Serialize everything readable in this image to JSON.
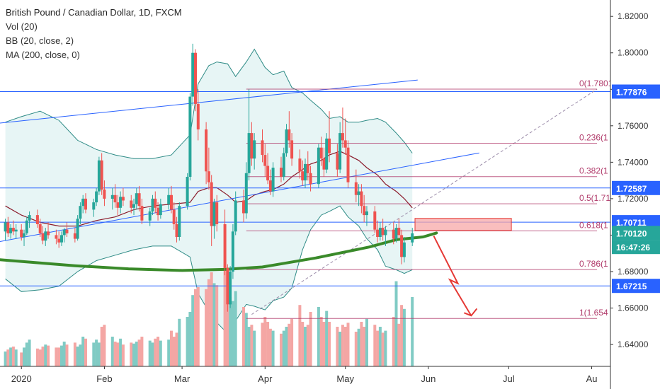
{
  "legend": {
    "title": "British Pound / Canadian Dollar, 1D, FXCM",
    "indicators": [
      "Vol (20)",
      "BB (20, close, 2)",
      "MA (200, close, 0)"
    ]
  },
  "colors": {
    "up": "#26a69a",
    "down": "#ef5350",
    "vol_up": "#80cbc4",
    "vol_down": "#f4a6a4",
    "bb_band": "#2e8b86",
    "bb_fill": "#dff2f2",
    "bb_mid": "#8b1a2a",
    "ma200": "#3a8a2a",
    "fib": "#b03a6a",
    "hline": "#2962ff",
    "arrow": "#e53935",
    "zone": "#f7a8a8"
  },
  "chart_data": {
    "type": "candlestick",
    "y_axis": {
      "range": [
        1.628,
        1.829
      ],
      "ticks": [
        1.82,
        1.8,
        1.78,
        1.76,
        1.74,
        1.72,
        1.7,
        1.68,
        1.66,
        1.64
      ],
      "tick_labels": [
        "1.82000",
        "1.80000",
        "1.78000",
        "1.76000",
        "1.74000",
        "1.72000",
        "1.70000",
        "1.68000",
        "1.66000",
        "1.64000"
      ]
    },
    "x_axis": {
      "range_days": [
        -8,
        220
      ],
      "labels": [
        {
          "day": 0,
          "text": "2020"
        },
        {
          "day": 31,
          "text": "Feb"
        },
        {
          "day": 60,
          "text": "Mar"
        },
        {
          "day": 91,
          "text": "Apr"
        },
        {
          "day": 121,
          "text": "May"
        },
        {
          "day": 152,
          "text": "Jun"
        },
        {
          "day": 182,
          "text": "Jul"
        },
        {
          "day": 213,
          "text": "Au"
        }
      ]
    },
    "price_badges": [
      {
        "value": 1.77876,
        "text": "1.77876",
        "color": "#2962ff"
      },
      {
        "value": 1.72587,
        "text": "1.72587",
        "color": "#2962ff"
      },
      {
        "value": 1.70711,
        "text": "1.70711",
        "color": "#2962ff"
      },
      {
        "value": 1.7012,
        "text": "1.70120",
        "color": "#26a69a"
      },
      {
        "value": 1.6935,
        "text": "16:47:26",
        "color": "#26a69a"
      },
      {
        "value": 1.67215,
        "text": "1.67215",
        "color": "#2962ff"
      }
    ],
    "horizontal_lines": [
      1.77876,
      1.72587,
      1.70711,
      1.67215
    ],
    "fib_levels": [
      {
        "value": 1.7801,
        "text": "0(1.7801"
      },
      {
        "value": 1.7504,
        "text": "0.236(1"
      },
      {
        "value": 1.7321,
        "text": "0.382(1"
      },
      {
        "value": 1.7172,
        "text": "0.5(1.71"
      },
      {
        "value": 1.7023,
        "text": "0.618(1"
      },
      {
        "value": 1.6811,
        "text": "0.786(1"
      },
      {
        "value": 1.6543,
        "text": "1(1.654"
      }
    ],
    "fib_x_days": [
      84,
      215
    ],
    "channel_lines": [
      {
        "x": [
          -8,
          148
        ],
        "y": [
          1.7615,
          1.7851
        ]
      },
      {
        "x": [
          -8,
          171
        ],
        "y": [
          1.6965,
          1.7451
        ]
      }
    ],
    "dashed_trend": {
      "x": [
        86,
        215
      ],
      "y": [
        1.6565,
        1.7801
      ]
    },
    "zone": {
      "x": [
        147,
        183
      ],
      "y": [
        1.7025,
        1.7092
      ]
    },
    "forecast_arrow": {
      "x": [
        154,
        163,
        160,
        168
      ],
      "y": [
        1.6995,
        1.6735,
        1.6755,
        1.6558
      ]
    },
    "ma200": {
      "x": [
        -8,
        20,
        40,
        60,
        76,
        90,
        110,
        130,
        140,
        150,
        155
      ],
      "y": [
        1.6865,
        1.6832,
        1.6815,
        1.6806,
        1.6812,
        1.6825,
        1.6875,
        1.6935,
        1.6975,
        1.699,
        1.7012
      ]
    },
    "candles": [
      {
        "d": -6,
        "o": 1.702,
        "h": 1.709,
        "l": 1.697,
        "c": 1.707
      },
      {
        "d": -5,
        "o": 1.707,
        "h": 1.71,
        "l": 1.699,
        "c": 1.701
      },
      {
        "d": -4,
        "o": 1.701,
        "h": 1.706,
        "l": 1.698,
        "c": 1.704
      },
      {
        "d": -3,
        "o": 1.704,
        "h": 1.708,
        "l": 1.7,
        "c": 1.702
      },
      {
        "d": -2,
        "o": 1.702,
        "h": 1.706,
        "l": 1.698,
        "c": 1.703
      },
      {
        "d": 0,
        "o": 1.703,
        "h": 1.706,
        "l": 1.697,
        "c": 1.699
      },
      {
        "d": 1,
        "o": 1.699,
        "h": 1.703,
        "l": 1.694,
        "c": 1.701
      },
      {
        "d": 2,
        "o": 1.701,
        "h": 1.71,
        "l": 1.7,
        "c": 1.708
      },
      {
        "d": 3,
        "o": 1.708,
        "h": 1.713,
        "l": 1.704,
        "c": 1.711
      },
      {
        "d": 6,
        "o": 1.711,
        "h": 1.714,
        "l": 1.704,
        "c": 1.706
      },
      {
        "d": 7,
        "o": 1.706,
        "h": 1.709,
        "l": 1.699,
        "c": 1.701
      },
      {
        "d": 8,
        "o": 1.701,
        "h": 1.705,
        "l": 1.695,
        "c": 1.697
      },
      {
        "d": 9,
        "o": 1.697,
        "h": 1.704,
        "l": 1.694,
        "c": 1.702
      },
      {
        "d": 10,
        "o": 1.702,
        "h": 1.707,
        "l": 1.698,
        "c": 1.7
      },
      {
        "d": 13,
        "o": 1.7,
        "h": 1.703,
        "l": 1.695,
        "c": 1.698
      },
      {
        "d": 14,
        "o": 1.698,
        "h": 1.702,
        "l": 1.693,
        "c": 1.696
      },
      {
        "d": 15,
        "o": 1.696,
        "h": 1.702,
        "l": 1.694,
        "c": 1.7
      },
      {
        "d": 16,
        "o": 1.7,
        "h": 1.704,
        "l": 1.696,
        "c": 1.703
      },
      {
        "d": 17,
        "o": 1.703,
        "h": 1.707,
        "l": 1.699,
        "c": 1.701
      },
      {
        "d": 20,
        "o": 1.701,
        "h": 1.704,
        "l": 1.696,
        "c": 1.698
      },
      {
        "d": 21,
        "o": 1.698,
        "h": 1.711,
        "l": 1.697,
        "c": 1.709
      },
      {
        "d": 22,
        "o": 1.709,
        "h": 1.718,
        "l": 1.706,
        "c": 1.716
      },
      {
        "d": 23,
        "o": 1.716,
        "h": 1.722,
        "l": 1.712,
        "c": 1.72
      },
      {
        "d": 24,
        "o": 1.72,
        "h": 1.723,
        "l": 1.712,
        "c": 1.714
      },
      {
        "d": 27,
        "o": 1.714,
        "h": 1.72,
        "l": 1.71,
        "c": 1.718
      },
      {
        "d": 28,
        "o": 1.718,
        "h": 1.726,
        "l": 1.716,
        "c": 1.724
      },
      {
        "d": 29,
        "o": 1.724,
        "h": 1.743,
        "l": 1.722,
        "c": 1.741
      },
      {
        "d": 30,
        "o": 1.741,
        "h": 1.745,
        "l": 1.722,
        "c": 1.725
      },
      {
        "d": 31,
        "o": 1.725,
        "h": 1.73,
        "l": 1.716,
        "c": 1.72
      },
      {
        "d": 34,
        "o": 1.72,
        "h": 1.726,
        "l": 1.714,
        "c": 1.722
      },
      {
        "d": 35,
        "o": 1.722,
        "h": 1.728,
        "l": 1.715,
        "c": 1.718
      },
      {
        "d": 36,
        "o": 1.718,
        "h": 1.722,
        "l": 1.711,
        "c": 1.715
      },
      {
        "d": 37,
        "o": 1.715,
        "h": 1.724,
        "l": 1.712,
        "c": 1.721
      },
      {
        "d": 38,
        "o": 1.721,
        "h": 1.726,
        "l": 1.716,
        "c": 1.719
      },
      {
        "d": 41,
        "o": 1.719,
        "h": 1.722,
        "l": 1.712,
        "c": 1.715
      },
      {
        "d": 42,
        "o": 1.715,
        "h": 1.72,
        "l": 1.711,
        "c": 1.717
      },
      {
        "d": 43,
        "o": 1.717,
        "h": 1.726,
        "l": 1.714,
        "c": 1.723
      },
      {
        "d": 44,
        "o": 1.723,
        "h": 1.727,
        "l": 1.713,
        "c": 1.716
      },
      {
        "d": 45,
        "o": 1.716,
        "h": 1.72,
        "l": 1.706,
        "c": 1.708
      },
      {
        "d": 48,
        "o": 1.708,
        "h": 1.715,
        "l": 1.705,
        "c": 1.713
      },
      {
        "d": 49,
        "o": 1.713,
        "h": 1.722,
        "l": 1.711,
        "c": 1.72
      },
      {
        "d": 50,
        "o": 1.72,
        "h": 1.724,
        "l": 1.712,
        "c": 1.715
      },
      {
        "d": 51,
        "o": 1.715,
        "h": 1.718,
        "l": 1.708,
        "c": 1.711
      },
      {
        "d": 52,
        "o": 1.711,
        "h": 1.72,
        "l": 1.709,
        "c": 1.717
      },
      {
        "d": 55,
        "o": 1.717,
        "h": 1.726,
        "l": 1.714,
        "c": 1.722
      },
      {
        "d": 56,
        "o": 1.722,
        "h": 1.727,
        "l": 1.712,
        "c": 1.714
      },
      {
        "d": 57,
        "o": 1.714,
        "h": 1.718,
        "l": 1.703,
        "c": 1.706
      },
      {
        "d": 58,
        "o": 1.706,
        "h": 1.71,
        "l": 1.696,
        "c": 1.699
      },
      {
        "d": 59,
        "o": 1.699,
        "h": 1.718,
        "l": 1.697,
        "c": 1.716
      },
      {
        "d": 62,
        "o": 1.716,
        "h": 1.734,
        "l": 1.714,
        "c": 1.732
      },
      {
        "d": 63,
        "o": 1.732,
        "h": 1.778,
        "l": 1.73,
        "c": 1.776
      },
      {
        "d": 64,
        "o": 1.776,
        "h": 1.805,
        "l": 1.771,
        "c": 1.8
      },
      {
        "d": 65,
        "o": 1.8,
        "h": 1.802,
        "l": 1.768,
        "c": 1.772
      },
      {
        "d": 66,
        "o": 1.772,
        "h": 1.78,
        "l": 1.752,
        "c": 1.758
      },
      {
        "d": 69,
        "o": 1.758,
        "h": 1.762,
        "l": 1.728,
        "c": 1.735
      },
      {
        "d": 70,
        "o": 1.735,
        "h": 1.748,
        "l": 1.725,
        "c": 1.729
      },
      {
        "d": 71,
        "o": 1.729,
        "h": 1.733,
        "l": 1.694,
        "c": 1.705
      },
      {
        "d": 72,
        "o": 1.705,
        "h": 1.72,
        "l": 1.698,
        "c": 1.718
      },
      {
        "d": 73,
        "o": 1.718,
        "h": 1.722,
        "l": 1.702,
        "c": 1.706
      },
      {
        "d": 76,
        "o": 1.706,
        "h": 1.714,
        "l": 1.678,
        "c": 1.682
      },
      {
        "d": 77,
        "o": 1.682,
        "h": 1.684,
        "l": 1.658,
        "c": 1.662
      },
      {
        "d": 78,
        "o": 1.662,
        "h": 1.683,
        "l": 1.66,
        "c": 1.68
      },
      {
        "d": 79,
        "o": 1.68,
        "h": 1.706,
        "l": 1.676,
        "c": 1.702
      },
      {
        "d": 80,
        "o": 1.702,
        "h": 1.724,
        "l": 1.7,
        "c": 1.719
      },
      {
        "d": 83,
        "o": 1.719,
        "h": 1.725,
        "l": 1.707,
        "c": 1.712
      },
      {
        "d": 84,
        "o": 1.712,
        "h": 1.74,
        "l": 1.709,
        "c": 1.734
      },
      {
        "d": 85,
        "o": 1.734,
        "h": 1.78,
        "l": 1.73,
        "c": 1.756
      },
      {
        "d": 86,
        "o": 1.756,
        "h": 1.762,
        "l": 1.738,
        "c": 1.742
      },
      {
        "d": 87,
        "o": 1.742,
        "h": 1.756,
        "l": 1.736,
        "c": 1.752
      },
      {
        "d": 90,
        "o": 1.752,
        "h": 1.758,
        "l": 1.74,
        "c": 1.744
      },
      {
        "d": 91,
        "o": 1.744,
        "h": 1.75,
        "l": 1.732,
        "c": 1.738
      },
      {
        "d": 92,
        "o": 1.738,
        "h": 1.745,
        "l": 1.728,
        "c": 1.73
      },
      {
        "d": 93,
        "o": 1.73,
        "h": 1.736,
        "l": 1.722,
        "c": 1.724
      },
      {
        "d": 94,
        "o": 1.724,
        "h": 1.74,
        "l": 1.721,
        "c": 1.737
      },
      {
        "d": 97,
        "o": 1.737,
        "h": 1.743,
        "l": 1.729,
        "c": 1.732
      },
      {
        "d": 98,
        "o": 1.732,
        "h": 1.748,
        "l": 1.73,
        "c": 1.745
      },
      {
        "d": 99,
        "o": 1.745,
        "h": 1.761,
        "l": 1.743,
        "c": 1.758
      },
      {
        "d": 100,
        "o": 1.758,
        "h": 1.768,
        "l": 1.748,
        "c": 1.752
      },
      {
        "d": 101,
        "o": 1.752,
        "h": 1.756,
        "l": 1.738,
        "c": 1.742
      },
      {
        "d": 104,
        "o": 1.742,
        "h": 1.747,
        "l": 1.731,
        "c": 1.735
      },
      {
        "d": 105,
        "o": 1.735,
        "h": 1.741,
        "l": 1.727,
        "c": 1.73
      },
      {
        "d": 106,
        "o": 1.73,
        "h": 1.742,
        "l": 1.726,
        "c": 1.739
      },
      {
        "d": 107,
        "o": 1.739,
        "h": 1.746,
        "l": 1.73,
        "c": 1.734
      },
      {
        "d": 108,
        "o": 1.734,
        "h": 1.738,
        "l": 1.724,
        "c": 1.728
      },
      {
        "d": 111,
        "o": 1.728,
        "h": 1.75,
        "l": 1.726,
        "c": 1.748
      },
      {
        "d": 112,
        "o": 1.748,
        "h": 1.754,
        "l": 1.738,
        "c": 1.742
      },
      {
        "d": 113,
        "o": 1.742,
        "h": 1.748,
        "l": 1.732,
        "c": 1.736
      },
      {
        "d": 114,
        "o": 1.736,
        "h": 1.756,
        "l": 1.734,
        "c": 1.753
      },
      {
        "d": 115,
        "o": 1.753,
        "h": 1.768,
        "l": 1.74,
        "c": 1.745
      },
      {
        "d": 118,
        "o": 1.745,
        "h": 1.75,
        "l": 1.732,
        "c": 1.736
      },
      {
        "d": 119,
        "o": 1.736,
        "h": 1.762,
        "l": 1.734,
        "c": 1.756
      },
      {
        "d": 120,
        "o": 1.756,
        "h": 1.77,
        "l": 1.748,
        "c": 1.752
      },
      {
        "d": 121,
        "o": 1.752,
        "h": 1.764,
        "l": 1.744,
        "c": 1.748
      },
      {
        "d": 122,
        "o": 1.748,
        "h": 1.752,
        "l": 1.726,
        "c": 1.729
      },
      {
        "d": 125,
        "o": 1.729,
        "h": 1.736,
        "l": 1.718,
        "c": 1.722
      },
      {
        "d": 126,
        "o": 1.722,
        "h": 1.728,
        "l": 1.716,
        "c": 1.724
      },
      {
        "d": 127,
        "o": 1.724,
        "h": 1.728,
        "l": 1.712,
        "c": 1.716
      },
      {
        "d": 128,
        "o": 1.716,
        "h": 1.722,
        "l": 1.707,
        "c": 1.711
      },
      {
        "d": 129,
        "o": 1.711,
        "h": 1.716,
        "l": 1.705,
        "c": 1.713
      },
      {
        "d": 132,
        "o": 1.713,
        "h": 1.716,
        "l": 1.701,
        "c": 1.703
      },
      {
        "d": 133,
        "o": 1.703,
        "h": 1.708,
        "l": 1.696,
        "c": 1.699
      },
      {
        "d": 134,
        "o": 1.699,
        "h": 1.707,
        "l": 1.697,
        "c": 1.704
      },
      {
        "d": 135,
        "o": 1.704,
        "h": 1.709,
        "l": 1.697,
        "c": 1.7
      },
      {
        "d": 136,
        "o": 1.7,
        "h": 1.705,
        "l": 1.694,
        "c": 1.703
      },
      {
        "d": 139,
        "o": 1.703,
        "h": 1.707,
        "l": 1.695,
        "c": 1.698
      },
      {
        "d": 140,
        "o": 1.698,
        "h": 1.706,
        "l": 1.696,
        "c": 1.704
      },
      {
        "d": 141,
        "o": 1.704,
        "h": 1.709,
        "l": 1.698,
        "c": 1.7
      },
      {
        "d": 142,
        "o": 1.7,
        "h": 1.703,
        "l": 1.684,
        "c": 1.688
      },
      {
        "d": 143,
        "o": 1.688,
        "h": 1.699,
        "l": 1.685,
        "c": 1.696
      },
      {
        "d": 146,
        "o": 1.696,
        "h": 1.704,
        "l": 1.694,
        "c": 1.701
      }
    ],
    "bb_x": [
      -6,
      0,
      7,
      14,
      21,
      28,
      35,
      42,
      49,
      56,
      63,
      66,
      70,
      73,
      77,
      80,
      84,
      87,
      91,
      94,
      98,
      101,
      105,
      108,
      112,
      115,
      119,
      122,
      126,
      129,
      133,
      136,
      140,
      143,
      146
    ],
    "bb_upper": [
      1.762,
      1.765,
      1.768,
      1.763,
      1.752,
      1.747,
      1.744,
      1.742,
      1.742,
      1.744,
      1.755,
      1.783,
      1.793,
      1.795,
      1.794,
      1.787,
      1.795,
      1.802,
      1.792,
      1.788,
      1.79,
      1.781,
      1.778,
      1.774,
      1.769,
      1.764,
      1.765,
      1.762,
      1.762,
      1.763,
      1.764,
      1.762,
      1.756,
      1.751,
      1.745
    ],
    "bb_mid": [
      1.716,
      1.711,
      1.707,
      1.705,
      1.705,
      1.708,
      1.71,
      1.714,
      1.716,
      1.717,
      1.718,
      1.724,
      1.726,
      1.726,
      1.722,
      1.718,
      1.719,
      1.722,
      1.724,
      1.725,
      1.728,
      1.732,
      1.736,
      1.739,
      1.741,
      1.744,
      1.746,
      1.744,
      1.741,
      1.737,
      1.733,
      1.728,
      1.724,
      1.72,
      1.715
    ],
    "bb_lower": [
      1.676,
      1.669,
      1.67,
      1.672,
      1.68,
      1.686,
      1.689,
      1.692,
      1.694,
      1.694,
      1.688,
      1.668,
      1.658,
      1.652,
      1.646,
      1.653,
      1.662,
      1.661,
      1.659,
      1.664,
      1.666,
      1.671,
      1.692,
      1.703,
      1.711,
      1.713,
      1.716,
      1.71,
      1.705,
      1.698,
      1.692,
      1.683,
      1.681,
      1.679,
      1.681
    ],
    "volume_max": 1.0,
    "volume": [
      0.15,
      0.17,
      0.19,
      0.2,
      0.17,
      0.14,
      0.19,
      0.24,
      0.27,
      0.18,
      0.17,
      0.2,
      0.22,
      0.21,
      0.19,
      0.19,
      0.21,
      0.25,
      0.22,
      0.24,
      0.2,
      0.22,
      0.3,
      0.28,
      0.24,
      0.27,
      0.24,
      0.4,
      0.42,
      0.3,
      0.25,
      0.24,
      0.28,
      0.22,
      0.24,
      0.23,
      0.25,
      0.27,
      0.3,
      0.26,
      0.24,
      0.28,
      0.3,
      0.26,
      0.27,
      0.36,
      0.3,
      0.34,
      0.48,
      0.5,
      0.55,
      0.72,
      0.78,
      0.8,
      0.78,
      0.88,
      0.95,
      0.84,
      0.82,
      1.0,
      0.8,
      0.7,
      0.66,
      0.76,
      0.6,
      0.54,
      0.4,
      0.42,
      0.36,
      0.44,
      0.5,
      0.45,
      0.38,
      0.36,
      0.33,
      0.36,
      0.4,
      0.43,
      0.48,
      0.62,
      0.45,
      0.4,
      0.42,
      0.55,
      0.6,
      0.5,
      0.45,
      0.56,
      0.45,
      0.4,
      0.35,
      0.42,
      0.4,
      0.44,
      0.35,
      0.38,
      0.45,
      0.4,
      0.48,
      0.42,
      0.36,
      0.4,
      0.34,
      0.36,
      0.5,
      0.86,
      0.43,
      0.62,
      0.58,
      0.7
    ]
  }
}
